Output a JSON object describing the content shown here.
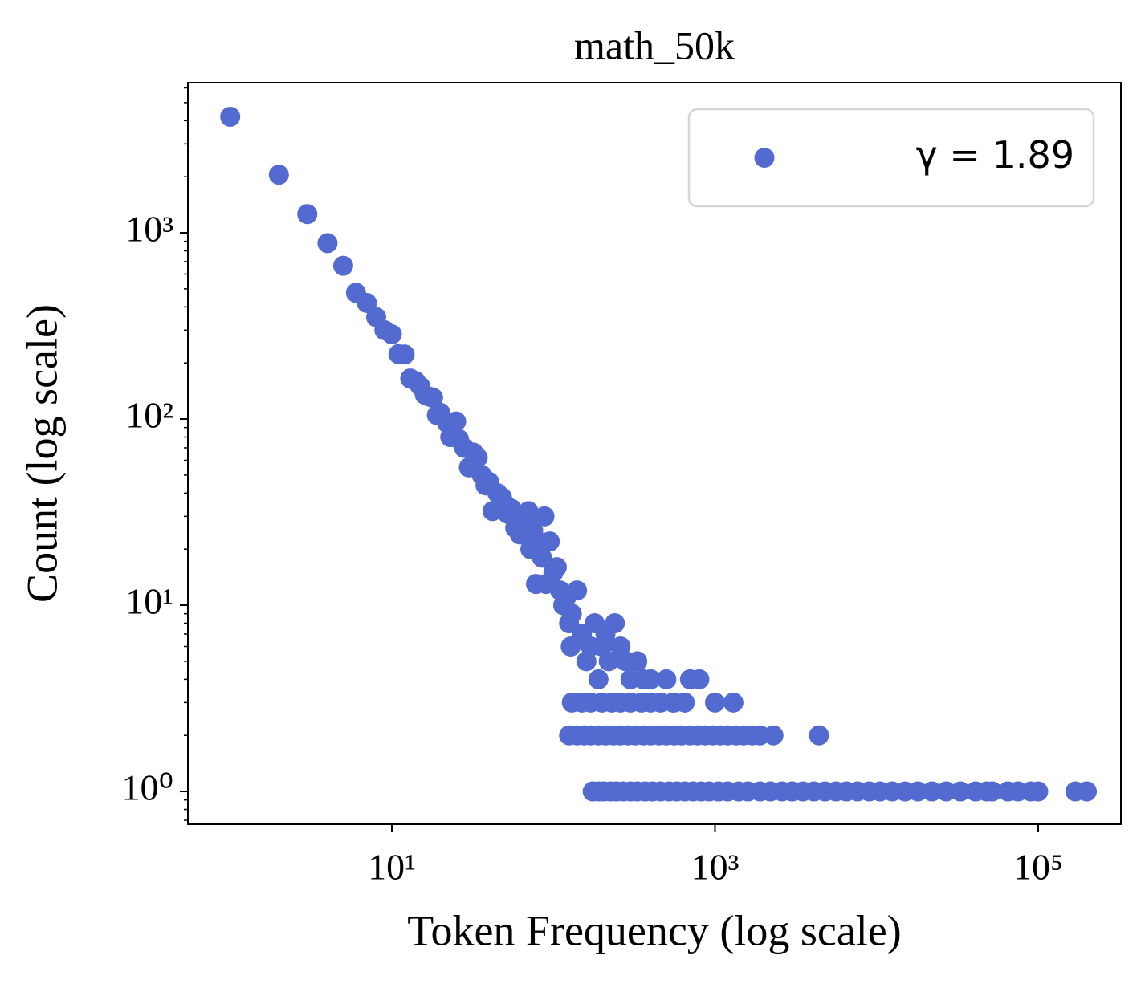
{
  "chart_data": {
    "type": "scatter",
    "title": "math_50k",
    "xlabel": "Token Frequency (log scale)",
    "ylabel": "Count (log scale)",
    "xscale": "log",
    "yscale": "log",
    "xlim": [
      0.547,
      325000
    ],
    "ylim": [
      0.666,
      6400
    ],
    "xticks": [
      {
        "value": 10,
        "label": "10¹"
      },
      {
        "value": 1000,
        "label": "10³"
      },
      {
        "value": 100000,
        "label": "10⁵"
      }
    ],
    "yticks": [
      {
        "value": 1,
        "label": "10⁰"
      },
      {
        "value": 10,
        "label": "10¹"
      },
      {
        "value": 100,
        "label": "10²"
      },
      {
        "value": 1000,
        "label": "10³"
      }
    ],
    "yminorticks": [
      0.7,
      0.8,
      0.9,
      2,
      3,
      4,
      5,
      6,
      7,
      8,
      9,
      20,
      30,
      40,
      50,
      60,
      70,
      80,
      90,
      200,
      300,
      400,
      500,
      600,
      700,
      800,
      900,
      2000,
      3000,
      4000,
      5000,
      6000
    ],
    "legend": "upper right",
    "series": [
      {
        "name": "γ = 1.89",
        "color": "#536bd0",
        "x": [
          1,
          2,
          3,
          4,
          5,
          6,
          7,
          8,
          9,
          10,
          11,
          12,
          13,
          14,
          15,
          16,
          17,
          18,
          19,
          20,
          22,
          23,
          25,
          26,
          28,
          30,
          32,
          34,
          36,
          38,
          40,
          42,
          45,
          48,
          50,
          52,
          55,
          58,
          60,
          62,
          65,
          68,
          70,
          72,
          75,
          78,
          80,
          85,
          88,
          90,
          95,
          100,
          105,
          110,
          115,
          120,
          125,
          128,
          130,
          140,
          150,
          160,
          170,
          180,
          190,
          200,
          210,
          220,
          240,
          260,
          280,
          300,
          330,
          360,
          400,
          500,
          560,
          700,
          800,
          130,
          150,
          170,
          200,
          230,
          260,
          300,
          350,
          400,
          460,
          550,
          650,
          1000,
          1300,
          125,
          140,
          155,
          170,
          190,
          210,
          235,
          260,
          290,
          320,
          360,
          400,
          450,
          500,
          560,
          620,
          700,
          780,
          870,
          970,
          1080,
          1200,
          1350,
          1500,
          1700,
          1900,
          2300,
          4400,
          175,
          190,
          205,
          225,
          245,
          270,
          300,
          330,
          370,
          410,
          460,
          520,
          580,
          650,
          730,
          820,
          920,
          1050,
          1200,
          1400,
          1600,
          1900,
          2200,
          2600,
          3000,
          3500,
          4100,
          4800,
          5600,
          6500,
          7600,
          9000,
          10500,
          12500,
          15000,
          18000,
          22000,
          27000,
          33000,
          41000,
          48000,
          52000,
          65000,
          75000,
          90000,
          100000,
          170000,
          200000
        ],
        "values": [
          4200,
          2050,
          1260,
          880,
          665,
          476,
          420,
          352,
          300,
          285,
          223,
          222,
          165,
          160,
          150,
          135,
          132,
          130,
          105,
          108,
          95,
          80,
          97,
          78,
          70,
          55,
          66,
          62,
          50,
          44,
          46,
          32,
          40,
          38,
          35,
          31,
          33,
          26,
          30,
          24,
          30,
          28,
          32,
          20,
          25,
          13,
          22,
          18,
          30,
          13,
          22,
          15,
          16,
          12,
          10,
          11,
          8,
          6,
          9,
          12,
          7,
          5,
          6,
          8,
          4,
          6,
          7,
          5,
          8,
          6,
          5,
          4,
          5,
          4,
          4,
          4,
          3,
          4,
          4,
          3,
          3,
          3,
          3,
          3,
          3,
          3,
          3,
          3,
          3,
          3,
          3,
          3,
          3,
          2,
          2,
          2,
          2,
          2,
          2,
          2,
          2,
          2,
          2,
          2,
          2,
          2,
          2,
          2,
          2,
          2,
          2,
          2,
          2,
          2,
          2,
          2,
          2,
          2,
          2,
          2,
          2,
          1,
          1,
          1,
          1,
          1,
          1,
          1,
          1,
          1,
          1,
          1,
          1,
          1,
          1,
          1,
          1,
          1,
          1,
          1,
          1,
          1,
          1,
          1,
          1,
          1,
          1,
          1,
          1,
          1,
          1,
          1,
          1,
          1,
          1,
          1,
          1,
          1,
          1,
          1,
          1,
          1,
          1,
          1,
          1,
          1,
          1,
          1,
          1
        ]
      }
    ]
  }
}
